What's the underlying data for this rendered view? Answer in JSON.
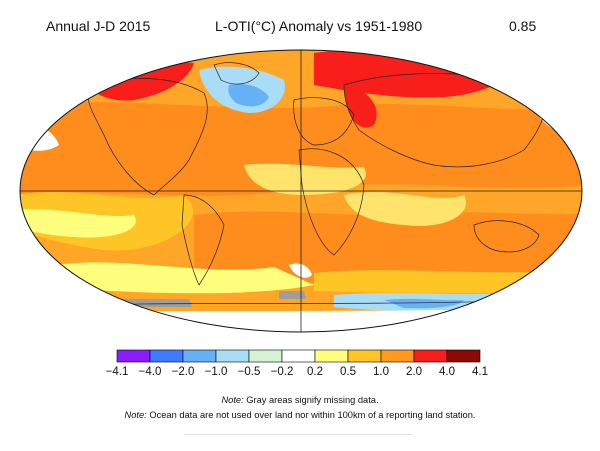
{
  "header": {
    "left": "Annual J-D 2015",
    "center": "L-OTI(°C) Anomaly vs 1951-1980",
    "right": "0.85"
  },
  "legend": {
    "bins": [
      {
        "color": "#8b1cff"
      },
      {
        "color": "#3f7bff"
      },
      {
        "color": "#64b1f5"
      },
      {
        "color": "#a8ddf5"
      },
      {
        "color": "#d6f3d6"
      },
      {
        "color": "#ffffff"
      },
      {
        "color": "#ffff7d"
      },
      {
        "color": "#ffc526"
      },
      {
        "color": "#ff9a1e"
      },
      {
        "color": "#f81e1a"
      },
      {
        "color": "#8c0a05"
      }
    ],
    "ticks": [
      "−4.1",
      "−4.0",
      "−2.0",
      "−1.0",
      "−0.5",
      "−0.2",
      "0.2",
      "0.5",
      "1.0",
      "2.0",
      "4.0",
      "4.1"
    ]
  },
  "notes": {
    "line1_label": "Note:",
    "line1_text": " Gray areas signify missing data.",
    "line2_label": "Note:",
    "line2_text": " Ocean data are not used over land nor within 100km of a reporting land station."
  },
  "map": {
    "palette": {
      "deep_orange": "#ff8d1d",
      "orange": "#ffa528",
      "gold": "#ffc526",
      "yellow": "#ffff7d",
      "light_yellow": "#ffe36a",
      "red": "#f81e1a",
      "light_blue": "#a8ddf5",
      "blue": "#64b1f5",
      "white": "#ffffff",
      "gray": "#9e9e9e"
    }
  }
}
